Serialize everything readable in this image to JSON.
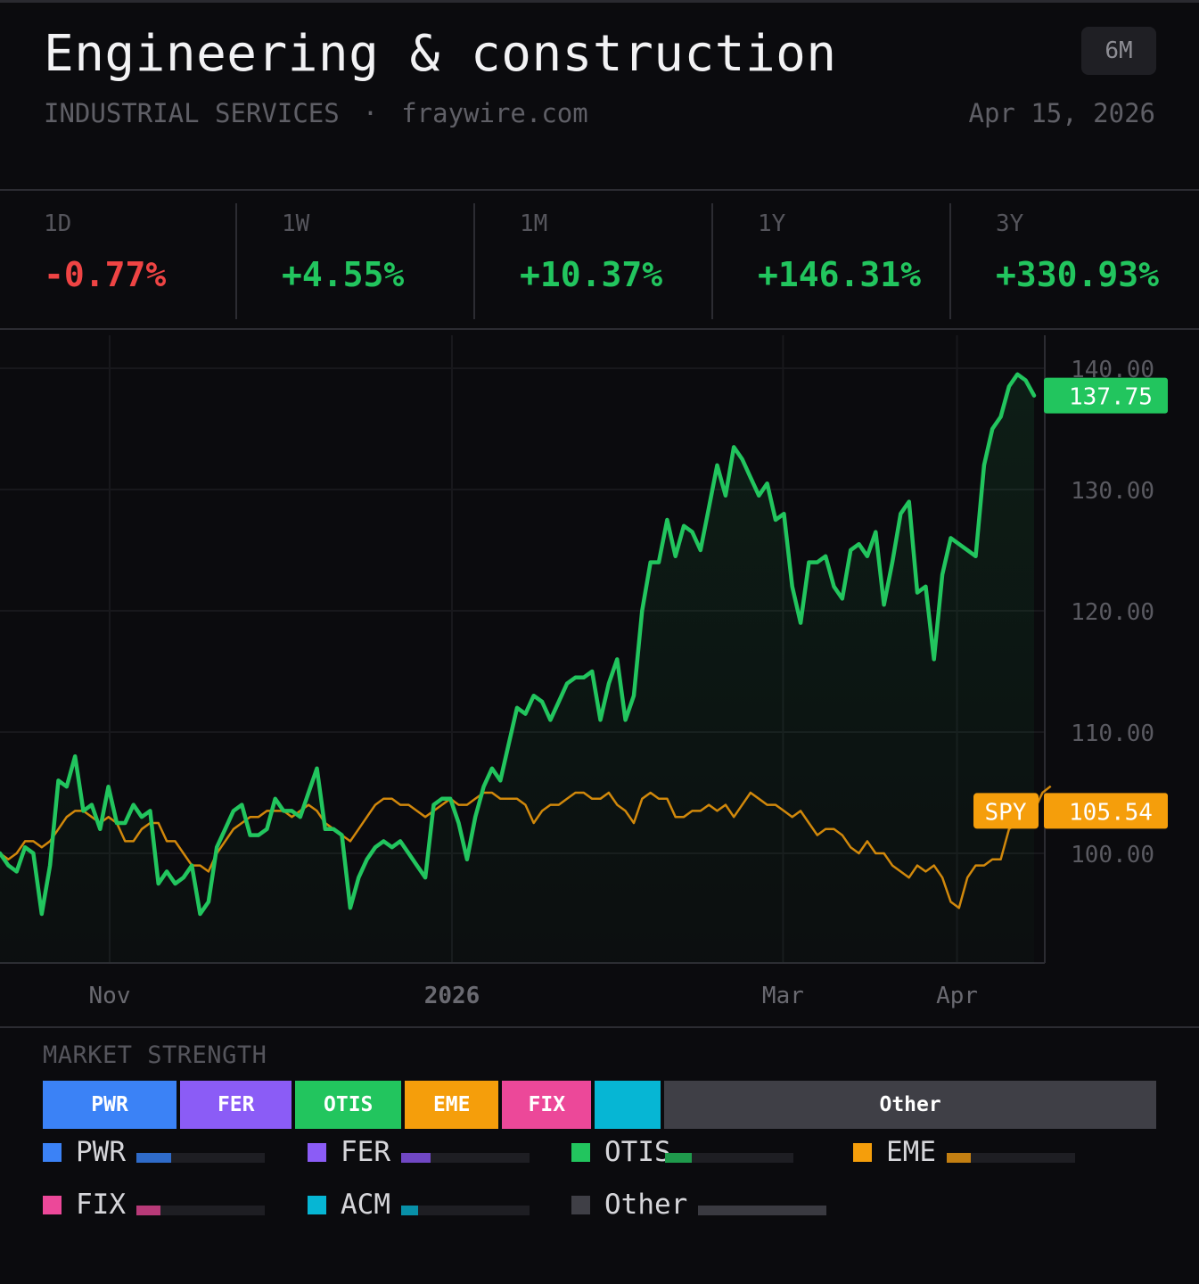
{
  "header": {
    "title": "Engineering & construction",
    "range_button": "6M",
    "category": "INDUSTRIAL SERVICES",
    "separator": "·",
    "source": "fraywire.com",
    "date": "Apr 15, 2026"
  },
  "performance": [
    {
      "label": "1D",
      "value": "-0.77%",
      "direction": "down"
    },
    {
      "label": "1W",
      "value": "+4.55%",
      "direction": "up"
    },
    {
      "label": "1M",
      "value": "+10.37%",
      "direction": "up"
    },
    {
      "label": "1Y",
      "value": "+146.31%",
      "direction": "up"
    },
    {
      "label": "3Y",
      "value": "+330.93%",
      "direction": "up"
    }
  ],
  "colors": {
    "sector_line": "#22c55e",
    "benchmark_line": "#f59e0b",
    "negative": "#ef4444",
    "positive": "#22c55e"
  },
  "chart_data": {
    "type": "line",
    "ylim": [
      91,
      142
    ],
    "y_ticks": [
      "140.00",
      "130.00",
      "120.00",
      "110.00",
      "100.00"
    ],
    "x_ticks": [
      {
        "label": "Nov",
        "day": 28
      },
      {
        "label": "2026",
        "day": 89
      },
      {
        "label": "Mar",
        "day": 148
      },
      {
        "label": "Apr",
        "day": 179
      }
    ],
    "last_labels": {
      "sector": "137.75",
      "benchmark_name": "SPY",
      "benchmark": "105.54"
    },
    "series": [
      {
        "key": "sector",
        "values": [
          100,
          99,
          98.5,
          100.5,
          100,
          95,
          99,
          106,
          105.5,
          108,
          103.5,
          104,
          102,
          105.5,
          102.5,
          102.5,
          104,
          103,
          103.5,
          97.5,
          98.5,
          97.5,
          98,
          99,
          95,
          96,
          100.5,
          102,
          103.5,
          104,
          101.5,
          101.5,
          102,
          104.5,
          103.5,
          103.5,
          103,
          105,
          107,
          102,
          102,
          101.5,
          95.5,
          98,
          99.5,
          100.5,
          101,
          100.5,
          101,
          100,
          99,
          98,
          104,
          104.5,
          104.5,
          102.5,
          99.5,
          103,
          105.5,
          107,
          106,
          109,
          112,
          111.5,
          113,
          112.5,
          111,
          112.5,
          114,
          114.5,
          114.5,
          115,
          111,
          114,
          116,
          111,
          113,
          120,
          124,
          124,
          127.5,
          124.5,
          127,
          126.5,
          125,
          128.5,
          132,
          129.5,
          133.5,
          132.5,
          131,
          129.5,
          130.5,
          127.5,
          128,
          122,
          119,
          124,
          124,
          124.5,
          122,
          121,
          125,
          125.5,
          124.5,
          126.5,
          120.5,
          124,
          128,
          129,
          121.5,
          122,
          116,
          123,
          126,
          125.5,
          125,
          124.5,
          132,
          135,
          136,
          138.5,
          139.5,
          139,
          137.75
        ]
      },
      {
        "key": "benchmark",
        "values": [
          100,
          99.5,
          100,
          101,
          101,
          100.5,
          101,
          102,
          103,
          103.5,
          103.5,
          103,
          102.5,
          103,
          102.5,
          101,
          101,
          102,
          102.5,
          102.5,
          101,
          101,
          100,
          99,
          99,
          98.5,
          100,
          101,
          102,
          102.5,
          103,
          103,
          103.5,
          103.5,
          103.5,
          103,
          103.5,
          104,
          103.5,
          102.5,
          102,
          101.5,
          101,
          102,
          103,
          104,
          104.5,
          104.5,
          104,
          104,
          103.5,
          103,
          103.5,
          104,
          104.5,
          104,
          104,
          104.5,
          105,
          105,
          104.5,
          104.5,
          104.5,
          104,
          102.5,
          103.5,
          104,
          104,
          104.5,
          105,
          105,
          104.5,
          104.5,
          105,
          104,
          103.5,
          102.5,
          104.5,
          105,
          104.5,
          104.5,
          103,
          103,
          103.5,
          103.5,
          104,
          103.5,
          104,
          103,
          104,
          105,
          104.5,
          104,
          104,
          103.5,
          103,
          103.5,
          102.5,
          101.5,
          102,
          102,
          101.5,
          100.5,
          100,
          101,
          100,
          100,
          99,
          98.5,
          98,
          99,
          98.5,
          99,
          98,
          96,
          95.5,
          98,
          99,
          99,
          99.5,
          99.5,
          102,
          102.5,
          102.5,
          103.5,
          105,
          105.54
        ]
      }
    ]
  },
  "market_strength": {
    "title": "MARKET STRENGTH",
    "segments": [
      {
        "label": "PWR",
        "weight": 12,
        "color": "#3b82f6"
      },
      {
        "label": "FER",
        "weight": 10,
        "color": "#8b5cf6"
      },
      {
        "label": "OTIS",
        "weight": 9.5,
        "color": "#22c55e"
      },
      {
        "label": "EME",
        "weight": 8.4,
        "color": "#f59e0b"
      },
      {
        "label": "FIX",
        "weight": 8,
        "color": "#ec4899"
      },
      {
        "label": "",
        "weight": 5.9,
        "color": "#06b6d4"
      },
      {
        "label": "Other",
        "weight": 44.1,
        "color": "#3f3f46"
      }
    ],
    "legend": [
      {
        "label": "PWR",
        "color": "#3b82f6",
        "fill": 0.27,
        "fill_color": "#2f6bc9"
      },
      {
        "label": "FER",
        "color": "#8b5cf6",
        "fill": 0.23,
        "fill_color": "#7047c4"
      },
      {
        "label": "OTIS",
        "color": "#22c55e",
        "fill": 0.21,
        "fill_color": "#1f9a4c"
      },
      {
        "label": "EME",
        "color": "#f59e0b",
        "fill": 0.19,
        "fill_color": "#c37f12"
      },
      {
        "label": "FIX",
        "color": "#ec4899",
        "fill": 0.19,
        "fill_color": "#b83a78"
      },
      {
        "label": "ACM",
        "color": "#06b6d4",
        "fill": 0.13,
        "fill_color": "#0890a8"
      },
      {
        "label": "Other",
        "color": "#3f3f46",
        "fill": 1.0,
        "fill_color": "#3a3a41"
      }
    ]
  }
}
